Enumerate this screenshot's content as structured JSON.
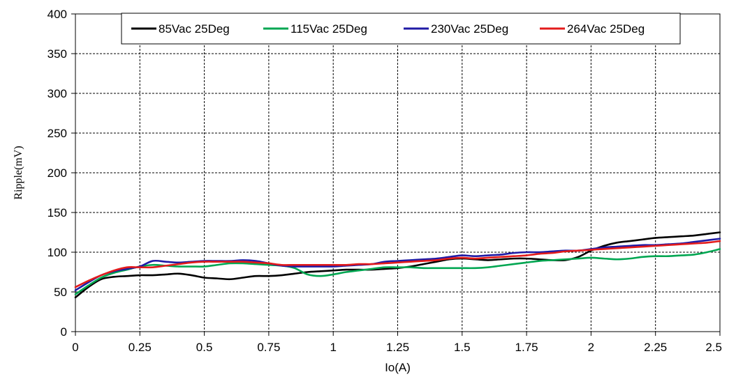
{
  "chart_data": {
    "type": "line",
    "xlabel": "Io(A)",
    "ylabel": "Ripple(mV)",
    "xlim": [
      0,
      2.5
    ],
    "ylim": [
      0,
      400
    ],
    "xticks": [
      "0",
      "0.25",
      "0.5",
      "0.75",
      "1",
      "1.25",
      "1.5",
      "1.75",
      "2",
      "2.25",
      "2.5"
    ],
    "yticks": [
      "0",
      "50",
      "100",
      "150",
      "200",
      "250",
      "300",
      "350",
      "400"
    ],
    "grid": true,
    "legend_position": "top",
    "series": [
      {
        "name": "85Vac 25Deg",
        "color": "#000000",
        "x": [
          0,
          0.05,
          0.1,
          0.15,
          0.2,
          0.25,
          0.3,
          0.35,
          0.4,
          0.45,
          0.5,
          0.55,
          0.6,
          0.65,
          0.7,
          0.75,
          0.8,
          0.85,
          0.9,
          0.95,
          1.0,
          1.05,
          1.1,
          1.15,
          1.2,
          1.25,
          1.3,
          1.35,
          1.4,
          1.45,
          1.5,
          1.55,
          1.6,
          1.65,
          1.7,
          1.75,
          1.8,
          1.85,
          1.9,
          1.95,
          2.0,
          2.05,
          2.1,
          2.15,
          2.2,
          2.25,
          2.3,
          2.35,
          2.4,
          2.45,
          2.5
        ],
        "y": [
          43,
          56,
          66,
          69,
          70,
          71,
          71,
          72,
          73,
          71,
          68,
          67,
          66,
          68,
          70,
          70,
          71,
          73,
          75,
          76,
          77,
          78,
          78,
          78,
          79,
          80,
          82,
          85,
          88,
          91,
          92,
          91,
          90,
          91,
          92,
          92,
          91,
          90,
          90,
          94,
          102,
          108,
          112,
          114,
          116,
          118,
          119,
          120,
          121,
          123,
          125
        ]
      },
      {
        "name": "115Vac 25Deg",
        "color": "#00a651",
        "x": [
          0,
          0.05,
          0.1,
          0.15,
          0.2,
          0.25,
          0.3,
          0.35,
          0.4,
          0.45,
          0.5,
          0.55,
          0.6,
          0.65,
          0.7,
          0.75,
          0.8,
          0.85,
          0.9,
          0.95,
          1.0,
          1.05,
          1.1,
          1.15,
          1.2,
          1.25,
          1.3,
          1.35,
          1.4,
          1.45,
          1.5,
          1.55,
          1.6,
          1.65,
          1.7,
          1.75,
          1.8,
          1.85,
          1.9,
          1.95,
          2.0,
          2.05,
          2.1,
          2.15,
          2.2,
          2.25,
          2.3,
          2.35,
          2.4,
          2.45,
          2.5
        ],
        "y": [
          47,
          58,
          68,
          74,
          78,
          82,
          84,
          83,
          82,
          82,
          82,
          84,
          86,
          86,
          85,
          84,
          83,
          80,
          72,
          70,
          72,
          75,
          77,
          79,
          81,
          81,
          81,
          80,
          80,
          80,
          80,
          80,
          81,
          83,
          85,
          87,
          89,
          90,
          91,
          92,
          93,
          92,
          91,
          92,
          94,
          95,
          95,
          96,
          97,
          100,
          104
        ]
      },
      {
        "name": "230Vac 25Deg",
        "color": "#1f1aa5",
        "x": [
          0,
          0.05,
          0.1,
          0.15,
          0.2,
          0.25,
          0.3,
          0.35,
          0.4,
          0.45,
          0.5,
          0.55,
          0.6,
          0.65,
          0.7,
          0.75,
          0.8,
          0.85,
          0.9,
          0.95,
          1.0,
          1.05,
          1.1,
          1.15,
          1.2,
          1.25,
          1.3,
          1.35,
          1.4,
          1.45,
          1.5,
          1.55,
          1.6,
          1.65,
          1.7,
          1.75,
          1.8,
          1.85,
          1.9,
          1.95,
          2.0,
          2.05,
          2.1,
          2.15,
          2.2,
          2.25,
          2.3,
          2.35,
          2.4,
          2.45,
          2.5
        ],
        "y": [
          52,
          62,
          71,
          76,
          79,
          82,
          89,
          88,
          87,
          88,
          89,
          89,
          89,
          90,
          89,
          86,
          83,
          82,
          82,
          82,
          82,
          83,
          84,
          85,
          88,
          89,
          90,
          91,
          92,
          94,
          96,
          95,
          96,
          97,
          99,
          100,
          100,
          101,
          102,
          102,
          104,
          106,
          107,
          108,
          109,
          109,
          110,
          111,
          113,
          115,
          117
        ]
      },
      {
        "name": "264Vac 25Deg",
        "color": "#e31b1b",
        "x": [
          0,
          0.05,
          0.1,
          0.15,
          0.2,
          0.25,
          0.3,
          0.35,
          0.4,
          0.45,
          0.5,
          0.55,
          0.6,
          0.65,
          0.7,
          0.75,
          0.8,
          0.85,
          0.9,
          0.95,
          1.0,
          1.05,
          1.1,
          1.15,
          1.2,
          1.25,
          1.3,
          1.35,
          1.4,
          1.45,
          1.5,
          1.55,
          1.6,
          1.65,
          1.7,
          1.75,
          1.8,
          1.85,
          1.9,
          1.95,
          2.0,
          2.05,
          2.1,
          2.15,
          2.2,
          2.25,
          2.3,
          2.35,
          2.4,
          2.45,
          2.5
        ],
        "y": [
          56,
          64,
          71,
          77,
          81,
          81,
          81,
          83,
          85,
          87,
          88,
          88,
          88,
          88,
          87,
          86,
          84,
          84,
          84,
          84,
          84,
          84,
          85,
          85,
          86,
          87,
          88,
          89,
          90,
          92,
          93,
          92,
          93,
          94,
          95,
          96,
          98,
          99,
          101,
          102,
          103,
          104,
          105,
          106,
          107,
          108,
          109,
          110,
          111,
          112,
          114
        ]
      }
    ]
  }
}
